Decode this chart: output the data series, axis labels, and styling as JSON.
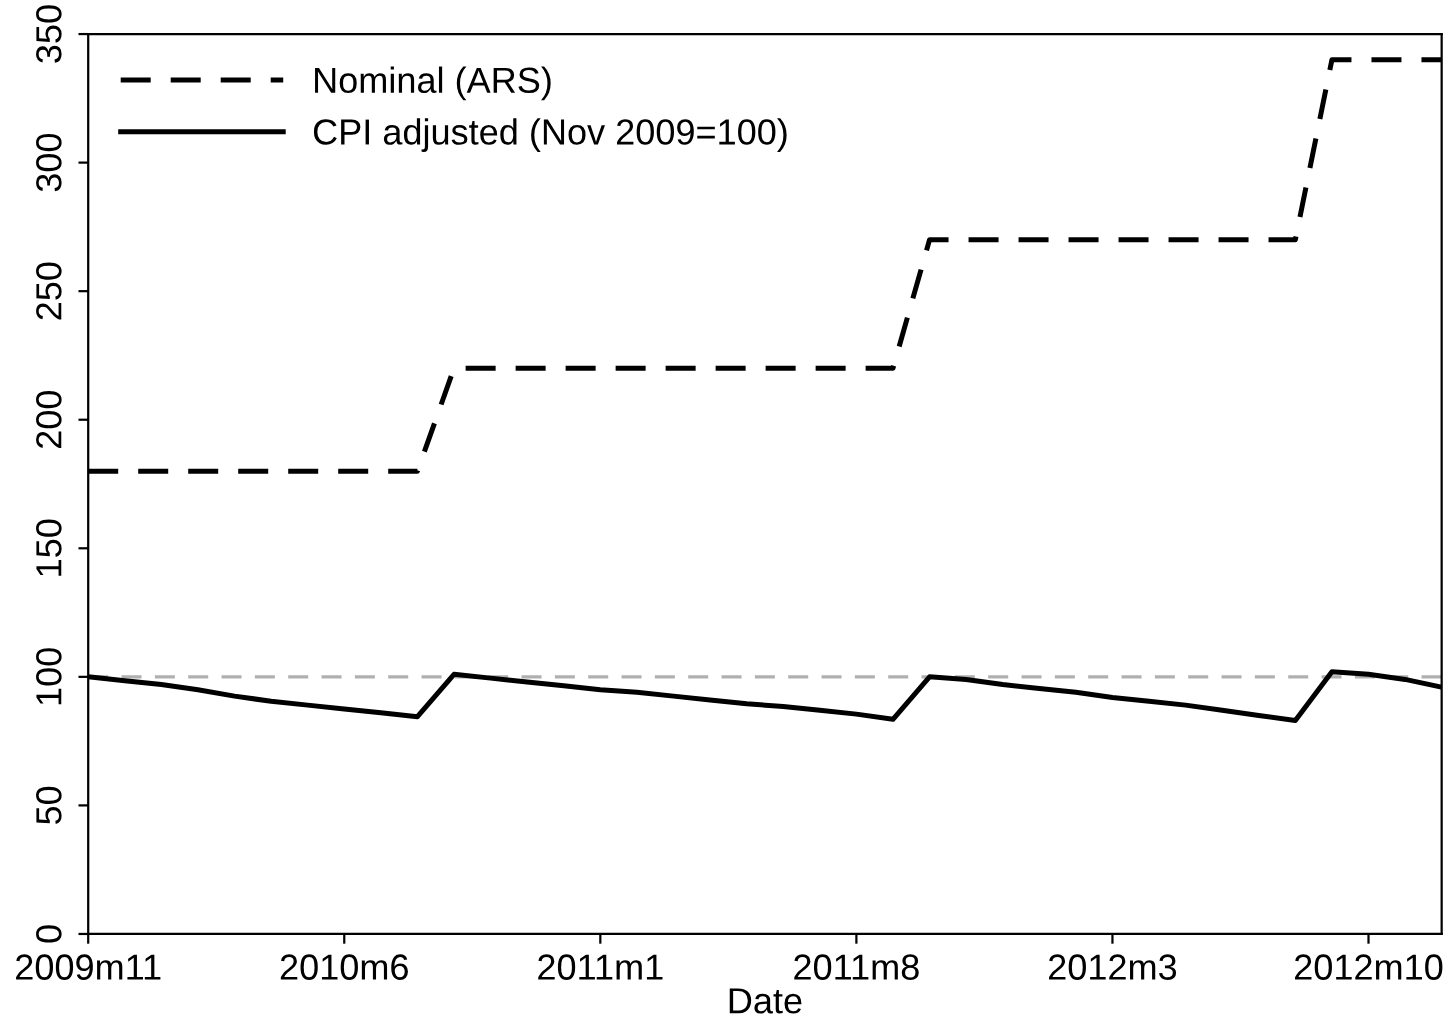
{
  "chart_data": {
    "type": "line",
    "xlabel": "Date",
    "x": [
      "2009-11",
      "2009-12",
      "2010-01",
      "2010-02",
      "2010-03",
      "2010-04",
      "2010-05",
      "2010-06",
      "2010-07",
      "2010-08",
      "2010-09",
      "2010-10",
      "2010-11",
      "2010-12",
      "2011-01",
      "2011-02",
      "2011-03",
      "2011-04",
      "2011-05",
      "2011-06",
      "2011-07",
      "2011-08",
      "2011-09",
      "2011-10",
      "2011-11",
      "2011-12",
      "2012-01",
      "2012-02",
      "2012-03",
      "2012-04",
      "2012-05",
      "2012-06",
      "2012-07",
      "2012-08",
      "2012-09",
      "2012-10",
      "2012-11",
      "2012-12"
    ],
    "series": [
      {
        "name": "Nominal (ARS)",
        "color": "#000000",
        "line_style": "dashed",
        "values": [
          180,
          180,
          180,
          180,
          180,
          180,
          180,
          180,
          180,
          180,
          220,
          220,
          220,
          220,
          220,
          220,
          220,
          220,
          220,
          220,
          220,
          220,
          220,
          270,
          270,
          270,
          270,
          270,
          270,
          270,
          270,
          270,
          270,
          270,
          340,
          340,
          340,
          340
        ]
      },
      {
        "name": "CPI adjusted (Nov 2009=100)",
        "color": "#000000",
        "line_style": "solid",
        "values": [
          100,
          98.5,
          97,
          95,
          92.5,
          90.5,
          89,
          87.5,
          86,
          84.5,
          101,
          99.5,
          98,
          96.5,
          95,
          94,
          92.5,
          91,
          89.5,
          88.5,
          87,
          85.5,
          83.5,
          100,
          99,
          97,
          95.5,
          94,
          92,
          90.5,
          89,
          87,
          85,
          83,
          102,
          101,
          99,
          96
        ]
      }
    ],
    "xlim": [
      "2009-11",
      "2012-12"
    ],
    "xticks": [
      {
        "value": "2009-11",
        "label": "2009m11"
      },
      {
        "value": "2010-06",
        "label": "2010m6"
      },
      {
        "value": "2011-01",
        "label": "2011m1"
      },
      {
        "value": "2011-08",
        "label": "2011m8"
      },
      {
        "value": "2012-03",
        "label": "2012m3"
      },
      {
        "value": "2012-10",
        "label": "2012m10"
      }
    ],
    "ylim": [
      0,
      350
    ],
    "yticks": [
      0,
      50,
      100,
      150,
      200,
      250,
      300,
      350
    ],
    "ref_lines": [
      {
        "axis": "y",
        "value": 100,
        "color": "#b0b0b0",
        "line_style": "dashed"
      }
    ],
    "grid": false,
    "legend": "top left",
    "marker": "none"
  }
}
